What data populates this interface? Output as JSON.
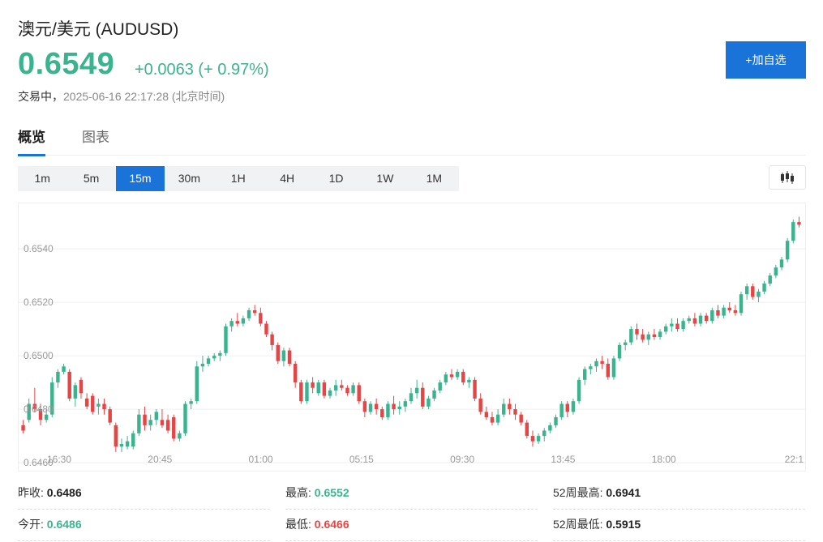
{
  "header": {
    "title": "澳元/美元 (AUDUSD)",
    "price": "0.6549",
    "change": "+0.0063 (+ 0.97%)",
    "status": "交易中，",
    "timestamp": "2025-06-16 22:17:28",
    "timezone": "(北京时间)",
    "add_button": "+加自选"
  },
  "colors": {
    "up": "#3bb38f",
    "down": "#e64545",
    "accent": "#1a73d9"
  },
  "tabs": [
    {
      "label": "概览",
      "active": true
    },
    {
      "label": "图表",
      "active": false
    }
  ],
  "intervals": [
    {
      "label": "1m"
    },
    {
      "label": "5m"
    },
    {
      "label": "15m",
      "active": true
    },
    {
      "label": "30m"
    },
    {
      "label": "1H"
    },
    {
      "label": "4H"
    },
    {
      "label": "1D"
    },
    {
      "label": "1W"
    },
    {
      "label": "1M"
    }
  ],
  "chart_type_icon": "candlestick-icon",
  "chart_data": {
    "type": "candlestick",
    "interval": "15m",
    "ylim": [
      0.6457,
      0.6557
    ],
    "yticks": [
      "0.6540",
      "0.6520",
      "0.6500",
      "0.6480",
      "0.6460"
    ],
    "xticks": [
      "16:30",
      "20:45",
      "01:00",
      "05:15",
      "09:30",
      "13:45",
      "18:00",
      "22:1"
    ],
    "grid": true,
    "candles": [
      [
        0.6474,
        0.6476,
        0.6471,
        0.6472
      ],
      [
        0.6476,
        0.6484,
        0.6475,
        0.6482
      ],
      [
        0.6482,
        0.6488,
        0.6479,
        0.648
      ],
      [
        0.648,
        0.6482,
        0.6474,
        0.6476
      ],
      [
        0.6476,
        0.648,
        0.6475,
        0.6478
      ],
      [
        0.6478,
        0.6492,
        0.6477,
        0.649
      ],
      [
        0.649,
        0.6495,
        0.6488,
        0.6494
      ],
      [
        0.6494,
        0.6497,
        0.6493,
        0.6496
      ],
      [
        0.6494,
        0.6495,
        0.6483,
        0.6484
      ],
      [
        0.6484,
        0.649,
        0.6481,
        0.6489
      ],
      [
        0.6491,
        0.6492,
        0.6484,
        0.6486
      ],
      [
        0.6484,
        0.6486,
        0.648,
        0.6481
      ],
      [
        0.6485,
        0.6486,
        0.6478,
        0.6479
      ],
      [
        0.6481,
        0.6484,
        0.6478,
        0.6482
      ],
      [
        0.6482,
        0.6484,
        0.6478,
        0.648
      ],
      [
        0.648,
        0.6481,
        0.6474,
        0.6475
      ],
      [
        0.6474,
        0.6475,
        0.6464,
        0.6466
      ],
      [
        0.6466,
        0.6469,
        0.6464,
        0.6467
      ],
      [
        0.6466,
        0.647,
        0.6465,
        0.6468
      ],
      [
        0.6466,
        0.6472,
        0.6465,
        0.6471
      ],
      [
        0.6471,
        0.648,
        0.647,
        0.6478
      ],
      [
        0.6478,
        0.6481,
        0.6472,
        0.6474
      ],
      [
        0.6474,
        0.6478,
        0.6472,
        0.6476
      ],
      [
        0.6476,
        0.648,
        0.6474,
        0.6479
      ],
      [
        0.6476,
        0.648,
        0.6473,
        0.6474
      ],
      [
        0.6476,
        0.6478,
        0.6471,
        0.6472
      ],
      [
        0.6477,
        0.6478,
        0.6468,
        0.6469
      ],
      [
        0.6469,
        0.6472,
        0.6468,
        0.6471
      ],
      [
        0.6471,
        0.6483,
        0.647,
        0.6482
      ],
      [
        0.6482,
        0.6484,
        0.648,
        0.6483
      ],
      [
        0.6483,
        0.6498,
        0.6482,
        0.6496
      ],
      [
        0.6496,
        0.65,
        0.6494,
        0.6497
      ],
      [
        0.6497,
        0.65,
        0.6496,
        0.6499
      ],
      [
        0.6499,
        0.6501,
        0.6498,
        0.65
      ],
      [
        0.65,
        0.6502,
        0.6498,
        0.6501
      ],
      [
        0.6501,
        0.6512,
        0.65,
        0.6511
      ],
      [
        0.6511,
        0.6514,
        0.6509,
        0.6513
      ],
      [
        0.6513,
        0.6516,
        0.6511,
        0.6512
      ],
      [
        0.6512,
        0.6515,
        0.6511,
        0.6514
      ],
      [
        0.6514,
        0.6518,
        0.6513,
        0.6517
      ],
      [
        0.6517,
        0.6519,
        0.6515,
        0.6516
      ],
      [
        0.6516,
        0.6518,
        0.6511,
        0.6512
      ],
      [
        0.6512,
        0.6513,
        0.6507,
        0.6508
      ],
      [
        0.6508,
        0.6509,
        0.6502,
        0.6504
      ],
      [
        0.6504,
        0.6505,
        0.6497,
        0.6498
      ],
      [
        0.6498,
        0.6503,
        0.6496,
        0.6502
      ],
      [
        0.6502,
        0.6503,
        0.6496,
        0.6497
      ],
      [
        0.6497,
        0.6498,
        0.6488,
        0.649
      ],
      [
        0.649,
        0.6491,
        0.6482,
        0.6483
      ],
      [
        0.6483,
        0.6491,
        0.6482,
        0.649
      ],
      [
        0.649,
        0.6492,
        0.6486,
        0.6488
      ],
      [
        0.6486,
        0.6491,
        0.6485,
        0.649
      ],
      [
        0.649,
        0.6491,
        0.6484,
        0.6485
      ],
      [
        0.6485,
        0.6488,
        0.6484,
        0.6487
      ],
      [
        0.6487,
        0.6491,
        0.6485,
        0.6489
      ],
      [
        0.6489,
        0.6491,
        0.6487,
        0.6488
      ],
      [
        0.6488,
        0.6489,
        0.6485,
        0.6486
      ],
      [
        0.6486,
        0.649,
        0.6485,
        0.6489
      ],
      [
        0.6489,
        0.649,
        0.6482,
        0.6483
      ],
      [
        0.6483,
        0.6484,
        0.6477,
        0.6479
      ],
      [
        0.6479,
        0.6483,
        0.6478,
        0.6482
      ],
      [
        0.6482,
        0.6484,
        0.6478,
        0.648
      ],
      [
        0.648,
        0.6481,
        0.6476,
        0.6477
      ],
      [
        0.6477,
        0.6483,
        0.6476,
        0.6482
      ],
      [
        0.6482,
        0.6485,
        0.6478,
        0.648
      ],
      [
        0.648,
        0.6483,
        0.6478,
        0.6481
      ],
      [
        0.6481,
        0.6484,
        0.6479,
        0.6483
      ],
      [
        0.6483,
        0.6488,
        0.6482,
        0.6486
      ],
      [
        0.6486,
        0.6491,
        0.6484,
        0.6488
      ],
      [
        0.6488,
        0.649,
        0.648,
        0.6481
      ],
      [
        0.6481,
        0.6485,
        0.648,
        0.6484
      ],
      [
        0.6484,
        0.6488,
        0.6483,
        0.6487
      ],
      [
        0.6487,
        0.6491,
        0.6486,
        0.649
      ],
      [
        0.649,
        0.6494,
        0.6489,
        0.6493
      ],
      [
        0.6493,
        0.6495,
        0.6491,
        0.6492
      ],
      [
        0.6492,
        0.6495,
        0.6491,
        0.6494
      ],
      [
        0.6494,
        0.6495,
        0.6489,
        0.649
      ],
      [
        0.649,
        0.6492,
        0.6488,
        0.6491
      ],
      [
        0.6491,
        0.6492,
        0.6483,
        0.6484
      ],
      [
        0.6484,
        0.6486,
        0.6478,
        0.6479
      ],
      [
        0.6479,
        0.6481,
        0.6476,
        0.6477
      ],
      [
        0.6477,
        0.6479,
        0.6474,
        0.6475
      ],
      [
        0.6475,
        0.648,
        0.6474,
        0.6478
      ],
      [
        0.6478,
        0.6484,
        0.6477,
        0.6482
      ],
      [
        0.6482,
        0.6484,
        0.6478,
        0.648
      ],
      [
        0.648,
        0.6482,
        0.6476,
        0.6478
      ],
      [
        0.6478,
        0.6479,
        0.6474,
        0.6475
      ],
      [
        0.6475,
        0.6476,
        0.6469,
        0.647
      ],
      [
        0.647,
        0.6472,
        0.6466,
        0.6468
      ],
      [
        0.6468,
        0.6471,
        0.6467,
        0.647
      ],
      [
        0.647,
        0.6473,
        0.6468,
        0.6472
      ],
      [
        0.6472,
        0.6475,
        0.6471,
        0.6474
      ],
      [
        0.6474,
        0.6478,
        0.6473,
        0.6477
      ],
      [
        0.6477,
        0.6483,
        0.6476,
        0.6482
      ],
      [
        0.6482,
        0.6483,
        0.6477,
        0.6479
      ],
      [
        0.6479,
        0.6484,
        0.6478,
        0.6483
      ],
      [
        0.6483,
        0.6492,
        0.6482,
        0.6491
      ],
      [
        0.6491,
        0.6496,
        0.6489,
        0.6495
      ],
      [
        0.6495,
        0.6497,
        0.6493,
        0.6496
      ],
      [
        0.6496,
        0.6499,
        0.6494,
        0.6498
      ],
      [
        0.6498,
        0.65,
        0.6495,
        0.6497
      ],
      [
        0.6497,
        0.6499,
        0.6491,
        0.6492
      ],
      [
        0.6492,
        0.65,
        0.6491,
        0.6499
      ],
      [
        0.6499,
        0.6505,
        0.6498,
        0.6504
      ],
      [
        0.6504,
        0.6506,
        0.6502,
        0.6505
      ],
      [
        0.6505,
        0.6511,
        0.6504,
        0.651
      ],
      [
        0.651,
        0.6512,
        0.6506,
        0.6508
      ],
      [
        0.6508,
        0.651,
        0.6505,
        0.6506
      ],
      [
        0.6506,
        0.6509,
        0.6504,
        0.6508
      ],
      [
        0.6508,
        0.651,
        0.6506,
        0.6507
      ],
      [
        0.6507,
        0.651,
        0.6506,
        0.6509
      ],
      [
        0.6509,
        0.6512,
        0.6508,
        0.6511
      ],
      [
        0.6511,
        0.6514,
        0.6509,
        0.6512
      ],
      [
        0.6512,
        0.6514,
        0.6509,
        0.651
      ],
      [
        0.651,
        0.6514,
        0.6509,
        0.6513
      ],
      [
        0.6513,
        0.6515,
        0.6512,
        0.6514
      ],
      [
        0.6514,
        0.6516,
        0.6511,
        0.6512
      ],
      [
        0.6512,
        0.6516,
        0.6511,
        0.6515
      ],
      [
        0.6515,
        0.6516,
        0.6512,
        0.6513
      ],
      [
        0.6513,
        0.6518,
        0.6512,
        0.6517
      ],
      [
        0.6517,
        0.6519,
        0.6514,
        0.6515
      ],
      [
        0.6515,
        0.6519,
        0.6514,
        0.6518
      ],
      [
        0.6518,
        0.652,
        0.6516,
        0.6517
      ],
      [
        0.6517,
        0.6519,
        0.6515,
        0.6516
      ],
      [
        0.6516,
        0.6524,
        0.6515,
        0.6523
      ],
      [
        0.6523,
        0.6527,
        0.6521,
        0.6526
      ],
      [
        0.6526,
        0.6527,
        0.6521,
        0.6522
      ],
      [
        0.6522,
        0.6525,
        0.652,
        0.6524
      ],
      [
        0.6524,
        0.6528,
        0.6523,
        0.6527
      ],
      [
        0.6527,
        0.6531,
        0.6526,
        0.653
      ],
      [
        0.653,
        0.6534,
        0.6529,
        0.6533
      ],
      [
        0.6533,
        0.6537,
        0.6532,
        0.6536
      ],
      [
        0.6536,
        0.6544,
        0.6535,
        0.6543
      ],
      [
        0.6543,
        0.6551,
        0.6542,
        0.655
      ],
      [
        0.655,
        0.6552,
        0.6548,
        0.6549
      ]
    ]
  },
  "stats": [
    [
      {
        "label": "昨收:",
        "value": "0.6486",
        "tone": ""
      },
      {
        "label": "最高:",
        "value": "0.6552",
        "tone": "up"
      },
      {
        "label": "52周最高:",
        "value": "0.6941",
        "tone": ""
      }
    ],
    [
      {
        "label": "今开:",
        "value": "0.6486",
        "tone": "up"
      },
      {
        "label": "最低:",
        "value": "0.6466",
        "tone": "down"
      },
      {
        "label": "52周最低:",
        "value": "0.5915",
        "tone": ""
      }
    ]
  ]
}
